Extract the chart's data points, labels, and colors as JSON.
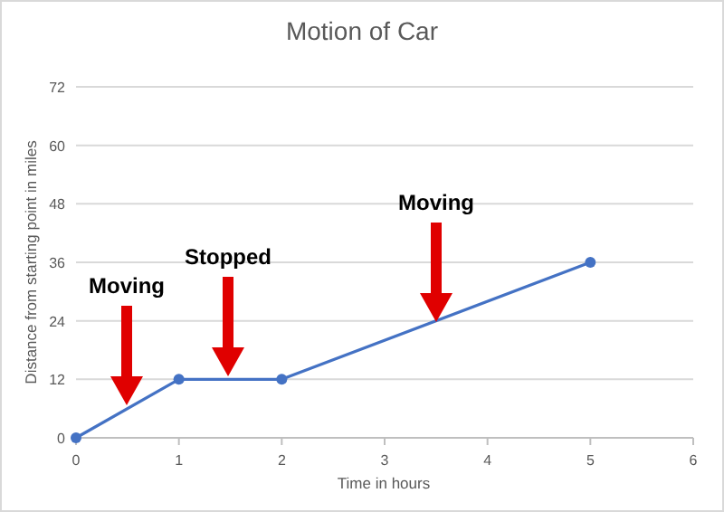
{
  "chart_data": {
    "type": "line",
    "title": "Motion of Car",
    "xlabel": "Time in hours",
    "ylabel": "Distance from starting point in miles",
    "x": [
      0,
      1,
      2,
      5
    ],
    "series": [
      {
        "color": "#4472c4",
        "values": [
          0,
          12,
          12,
          36
        ]
      }
    ],
    "xlim": [
      0,
      6
    ],
    "xticks": [
      0,
      1,
      2,
      3,
      4,
      5,
      6
    ],
    "ylim": [
      0,
      72
    ],
    "yticks": [
      0,
      12,
      24,
      36,
      48,
      60,
      72
    ],
    "grid": "y",
    "marker": "circle",
    "line_style": "solid",
    "annotations": [
      "Moving",
      "Stopped",
      "Moving"
    ]
  }
}
